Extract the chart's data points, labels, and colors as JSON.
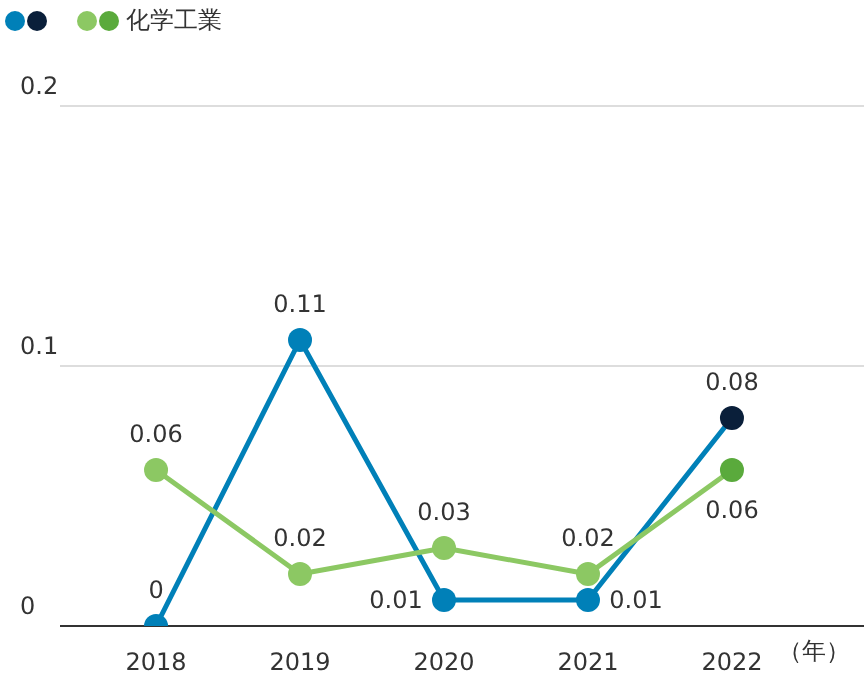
{
  "chart_data": {
    "type": "line",
    "xlabel": "（年）",
    "categories": [
      "2018",
      "2019",
      "2020",
      "2021",
      "2022"
    ],
    "series": [
      {
        "color": "#0080b8",
        "colors": [
          "#0080b8",
          "#0080b8",
          "#0080b8",
          "#0080b8",
          "#0a1f3a"
        ],
        "values": [
          0,
          0.11,
          0.01,
          0.01,
          0.08
        ]
      },
      {
        "name": "化学工業",
        "color": "#8cc863",
        "colors": [
          "#8cc863",
          "#8cc863",
          "#8cc863",
          "#8cc863",
          "#5aaa3c"
        ],
        "values": [
          0.06,
          0.02,
          0.03,
          0.02,
          0.06
        ]
      }
    ],
    "ylim": [
      0,
      0.2
    ],
    "yticks": [
      0,
      0.1,
      0.2
    ],
    "grid": "y",
    "legend": "top left",
    "marker": "circle",
    "line_style": "solid",
    "data_labels": true
  }
}
